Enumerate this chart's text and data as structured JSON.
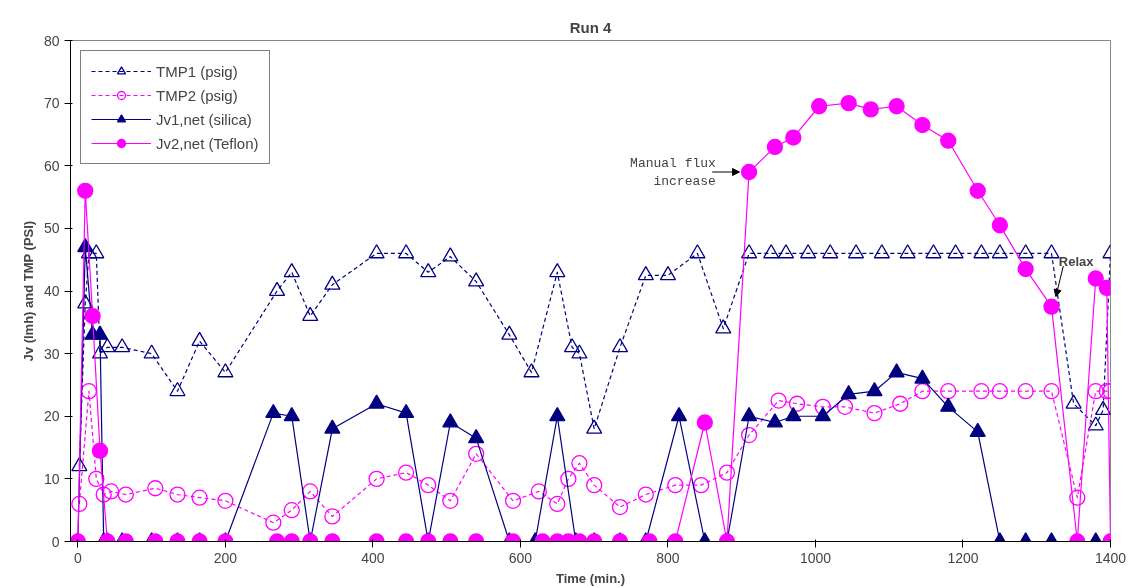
{
  "chart_data": {
    "type": "line",
    "title": "Run 4",
    "xlabel": "Time (min.)",
    "ylabel": "Jv (lmh) and TMP (PSI)",
    "xlim": [
      -10,
      1400
    ],
    "ylim": [
      0,
      80
    ],
    "xticks": [
      0,
      200,
      400,
      600,
      800,
      1000,
      1200,
      1400
    ],
    "yticks": [
      0,
      10,
      20,
      30,
      40,
      50,
      60,
      70,
      80
    ],
    "grid": false,
    "legend": "top left",
    "annotations": [
      {
        "text": "Manual flux\nincrease",
        "x": 910,
        "y": 59
      },
      {
        "text": "Relax",
        "x": 1320,
        "y": 37.5
      }
    ],
    "series": [
      {
        "name": "TMP1 (psig)",
        "color": "#000080",
        "marker": "triangle",
        "line_style": "dashed",
        "x": [
          2,
          10,
          15,
          25,
          30,
          40,
          60,
          100,
          135,
          165,
          200,
          270,
          290,
          315,
          345,
          405,
          445,
          475,
          505,
          540,
          585,
          615,
          650,
          670,
          680,
          700,
          735,
          770,
          800,
          840,
          875,
          910,
          940,
          960,
          990,
          1020,
          1055,
          1090,
          1125,
          1160,
          1190,
          1225,
          1250,
          1285,
          1320,
          1350,
          1380,
          1390,
          1400
        ],
        "values": [
          12,
          38,
          46,
          46,
          30,
          31,
          31,
          30,
          24,
          32,
          27,
          40,
          43,
          36,
          41,
          46,
          46,
          43,
          45.5,
          41.5,
          33,
          27,
          43,
          31,
          30,
          18,
          31,
          42.5,
          42.5,
          46,
          34,
          46,
          46,
          46,
          46,
          46,
          46,
          46,
          46,
          46,
          46,
          46,
          46,
          46,
          46,
          22,
          18.5,
          21,
          46
        ]
      },
      {
        "name": "TMP2 (psig)",
        "color": "#ff00ff",
        "marker": "circle",
        "line_style": "dashed",
        "x": [
          2,
          15,
          25,
          35,
          45,
          65,
          105,
          135,
          165,
          200,
          265,
          290,
          315,
          345,
          405,
          445,
          475,
          505,
          540,
          590,
          625,
          650,
          665,
          680,
          700,
          735,
          770,
          810,
          845,
          880,
          910,
          950,
          975,
          1010,
          1040,
          1080,
          1115,
          1145,
          1180,
          1225,
          1250,
          1285,
          1320,
          1355,
          1380,
          1395,
          1400
        ],
        "values": [
          6,
          24,
          10,
          7.5,
          8,
          7.5,
          8.5,
          7.5,
          7,
          6.5,
          3,
          5,
          8,
          4,
          10,
          11,
          9,
          6.5,
          14,
          6.5,
          8,
          6,
          10,
          12.5,
          9,
          5.5,
          7.5,
          9,
          9,
          11,
          17,
          22.5,
          22,
          21.5,
          21.5,
          20.5,
          22,
          24,
          24,
          24,
          24,
          24,
          24,
          7,
          24,
          24,
          24
        ]
      },
      {
        "name": "Jv1,net (silica)",
        "color": "#000080",
        "marker": "triangle",
        "line_style": "solid",
        "x": [
          0,
          10,
          20,
          30,
          35,
          40,
          60,
          100,
          135,
          165,
          200,
          265,
          290,
          315,
          345,
          405,
          445,
          475,
          505,
          540,
          585,
          620,
          650,
          675,
          700,
          735,
          770,
          815,
          850,
          880,
          910,
          945,
          970,
          1010,
          1045,
          1080,
          1110,
          1145,
          1180,
          1220,
          1250,
          1285,
          1320,
          1380
        ],
        "values": [
          0,
          47,
          33,
          33,
          0,
          0,
          0,
          0,
          0,
          0,
          0,
          20.5,
          20,
          0,
          18,
          22,
          20.5,
          0,
          19,
          16.5,
          0,
          0,
          20,
          0,
          0,
          0,
          0,
          20,
          0,
          0,
          20,
          19,
          20,
          20,
          23.5,
          24,
          27,
          26,
          21.5,
          17.5,
          0,
          0,
          0,
          0
        ]
      },
      {
        "name": "Jv2,net (Teflon)",
        "color": "#ff00ff",
        "marker": "circle",
        "line_style": "solid",
        "x": [
          0,
          10,
          20,
          30,
          40,
          65,
          105,
          135,
          165,
          200,
          270,
          290,
          315,
          345,
          405,
          445,
          475,
          505,
          540,
          590,
          630,
          650,
          665,
          680,
          700,
          735,
          775,
          810,
          850,
          880,
          910,
          945,
          970,
          1005,
          1045,
          1075,
          1110,
          1145,
          1180,
          1220,
          1250,
          1285,
          1320,
          1355,
          1380,
          1395,
          1400
        ],
        "values": [
          0,
          56,
          36,
          14.5,
          0,
          0,
          0,
          0,
          0,
          0,
          0,
          0,
          0,
          0,
          0,
          0,
          0,
          0,
          0,
          0,
          0,
          0,
          0,
          0,
          0,
          0,
          0,
          0,
          19,
          0,
          59,
          63,
          64.5,
          69.5,
          70,
          69,
          69.5,
          66.5,
          64,
          56,
          50.5,
          43.5,
          37.5,
          0,
          42,
          40.5,
          0
        ]
      }
    ]
  }
}
